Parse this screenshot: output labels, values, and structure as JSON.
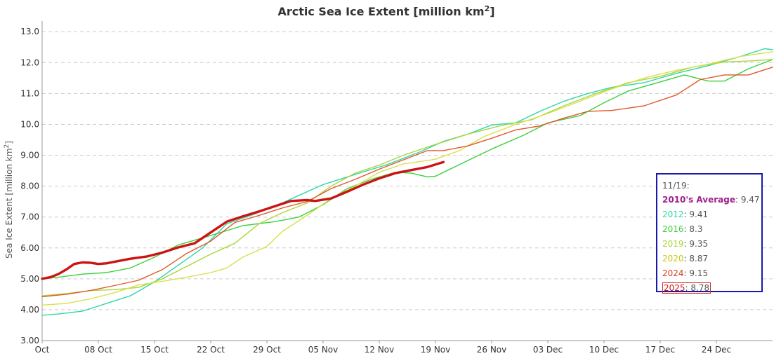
{
  "chart_data": {
    "type": "line",
    "title": "Arctic Sea Ice Extent [million km",
    "title_sup": "2",
    "title_close": "]",
    "ylabel": "Sea Ice Extent [million km",
    "ylabel_sup": "2",
    "ylabel_close": "]",
    "ylim": [
      3.0,
      13.3
    ],
    "xlim": [
      1,
      92
    ],
    "yticks": [
      "3.00",
      "4.00",
      "5.00",
      "6.00",
      "7.00",
      "8.00",
      "9.00",
      "10.0",
      "11.0",
      "12.0",
      "13.0"
    ],
    "ytick_values": [
      3,
      4,
      5,
      6,
      7,
      8,
      9,
      10,
      11,
      12,
      13
    ],
    "xticks": [
      "Oct",
      "08 Oct",
      "15 Oct",
      "22 Oct",
      "29 Oct",
      "05 Nov",
      "12 Nov",
      "19 Nov",
      "26 Nov",
      "03 Dec",
      "10 Dec",
      "17 Dec",
      "24 Dec"
    ],
    "xtick_days": [
      1,
      8,
      15,
      22,
      29,
      36,
      43,
      50,
      57,
      64,
      71,
      78,
      85
    ],
    "series": [
      {
        "name": "2010's Average",
        "color": "#a0218c",
        "width": 1.2,
        "values": [],
        "legend_value": "9.47"
      },
      {
        "name": "2012",
        "color": "#2ed6ad",
        "width": 1.4,
        "points": [
          [
            1,
            3.82
          ],
          [
            3,
            3.86
          ],
          [
            6,
            3.95
          ],
          [
            9,
            4.2
          ],
          [
            12,
            4.45
          ],
          [
            15,
            4.9
          ],
          [
            18,
            5.45
          ],
          [
            21,
            6.0
          ],
          [
            24,
            6.78
          ],
          [
            27,
            7.05
          ],
          [
            30,
            7.35
          ],
          [
            33,
            7.7
          ],
          [
            36,
            8.05
          ],
          [
            40,
            8.38
          ],
          [
            44,
            8.7
          ],
          [
            48,
            9.1
          ],
          [
            51,
            9.45
          ],
          [
            54,
            9.68
          ],
          [
            57,
            9.98
          ],
          [
            60,
            10.05
          ],
          [
            63,
            10.42
          ],
          [
            66,
            10.75
          ],
          [
            69,
            11.0
          ],
          [
            72,
            11.2
          ],
          [
            76,
            11.35
          ],
          [
            80,
            11.65
          ],
          [
            84,
            11.9
          ],
          [
            88,
            12.2
          ],
          [
            91,
            12.45
          ],
          [
            92,
            12.42
          ]
        ],
        "legend_value": "9.41"
      },
      {
        "name": "2016",
        "color": "#3ad13a",
        "width": 1.4,
        "points": [
          [
            1,
            5.0
          ],
          [
            3,
            5.05
          ],
          [
            6,
            5.15
          ],
          [
            9,
            5.2
          ],
          [
            12,
            5.35
          ],
          [
            15,
            5.7
          ],
          [
            18,
            6.1
          ],
          [
            22,
            6.4
          ],
          [
            26,
            6.72
          ],
          [
            30,
            6.85
          ],
          [
            33,
            7.0
          ],
          [
            36,
            7.4
          ],
          [
            39,
            7.92
          ],
          [
            42,
            8.22
          ],
          [
            45,
            8.45
          ],
          [
            47,
            8.42
          ],
          [
            49,
            8.3
          ],
          [
            50,
            8.32
          ],
          [
            53,
            8.7
          ],
          [
            57,
            9.2
          ],
          [
            61,
            9.65
          ],
          [
            64,
            10.05
          ],
          [
            68,
            10.28
          ],
          [
            71,
            10.7
          ],
          [
            74,
            11.08
          ],
          [
            77,
            11.3
          ],
          [
            81,
            11.6
          ],
          [
            84,
            11.4
          ],
          [
            86,
            11.4
          ],
          [
            89,
            11.8
          ],
          [
            92,
            12.1
          ]
        ],
        "legend_value": "8.3"
      },
      {
        "name": "2019",
        "color": "#a9d63a",
        "width": 1.4,
        "points": [
          [
            1,
            4.45
          ],
          [
            4,
            4.52
          ],
          [
            7,
            4.62
          ],
          [
            10,
            4.65
          ],
          [
            13,
            4.72
          ],
          [
            16,
            5.0
          ],
          [
            19,
            5.4
          ],
          [
            22,
            5.8
          ],
          [
            25,
            6.15
          ],
          [
            28,
            6.78
          ],
          [
            31,
            7.15
          ],
          [
            34,
            7.45
          ],
          [
            37,
            8.0
          ],
          [
            40,
            8.42
          ],
          [
            43,
            8.68
          ],
          [
            46,
            9.0
          ],
          [
            50,
            9.35
          ],
          [
            54,
            9.68
          ],
          [
            58,
            9.95
          ],
          [
            62,
            10.15
          ],
          [
            66,
            10.6
          ],
          [
            70,
            11.0
          ],
          [
            74,
            11.35
          ],
          [
            78,
            11.55
          ],
          [
            82,
            11.85
          ],
          [
            86,
            12.02
          ],
          [
            89,
            12.05
          ],
          [
            92,
            12.1
          ]
        ],
        "legend_value": "9.35"
      },
      {
        "name": "2020",
        "color": "#d9e04a",
        "width": 1.4,
        "points": [
          [
            1,
            4.15
          ],
          [
            4,
            4.2
          ],
          [
            7,
            4.35
          ],
          [
            10,
            4.55
          ],
          [
            13,
            4.8
          ],
          [
            16,
            4.92
          ],
          [
            19,
            5.05
          ],
          [
            22,
            5.2
          ],
          [
            24,
            5.35
          ],
          [
            26,
            5.7
          ],
          [
            29,
            6.05
          ],
          [
            31,
            6.55
          ],
          [
            34,
            7.05
          ],
          [
            37,
            7.6
          ],
          [
            40,
            8.0
          ],
          [
            43,
            8.45
          ],
          [
            46,
            8.72
          ],
          [
            50,
            8.87
          ],
          [
            53,
            9.15
          ],
          [
            56,
            9.6
          ],
          [
            60,
            10.0
          ],
          [
            64,
            10.35
          ],
          [
            68,
            10.75
          ],
          [
            72,
            11.15
          ],
          [
            76,
            11.5
          ],
          [
            80,
            11.75
          ],
          [
            84,
            11.95
          ],
          [
            88,
            12.2
          ],
          [
            92,
            12.35
          ]
        ],
        "legend_value": "8.87"
      },
      {
        "name": "2024",
        "color": "#e0582a",
        "width": 1.4,
        "points": [
          [
            1,
            4.42
          ],
          [
            4,
            4.5
          ],
          [
            7,
            4.62
          ],
          [
            10,
            4.78
          ],
          [
            13,
            4.95
          ],
          [
            16,
            5.3
          ],
          [
            19,
            5.82
          ],
          [
            22,
            6.22
          ],
          [
            25,
            6.82
          ],
          [
            28,
            7.05
          ],
          [
            31,
            7.3
          ],
          [
            34,
            7.5
          ],
          [
            37,
            7.92
          ],
          [
            40,
            8.22
          ],
          [
            43,
            8.55
          ],
          [
            46,
            8.85
          ],
          [
            49,
            9.15
          ],
          [
            51,
            9.15
          ],
          [
            54,
            9.3
          ],
          [
            57,
            9.55
          ],
          [
            60,
            9.82
          ],
          [
            63,
            9.95
          ],
          [
            66,
            10.2
          ],
          [
            69,
            10.42
          ],
          [
            72,
            10.45
          ],
          [
            76,
            10.6
          ],
          [
            80,
            10.95
          ],
          [
            83,
            11.45
          ],
          [
            86,
            11.6
          ],
          [
            89,
            11.6
          ],
          [
            92,
            11.85
          ]
        ],
        "legend_value": "9.15"
      },
      {
        "name": "2025",
        "color": "#cc1414",
        "width": 3.4,
        "points": [
          [
            1,
            5.0
          ],
          [
            2,
            5.05
          ],
          [
            3,
            5.15
          ],
          [
            4,
            5.3
          ],
          [
            5,
            5.48
          ],
          [
            6,
            5.53
          ],
          [
            7,
            5.52
          ],
          [
            8,
            5.48
          ],
          [
            9,
            5.5
          ],
          [
            10,
            5.55
          ],
          [
            12,
            5.65
          ],
          [
            14,
            5.72
          ],
          [
            16,
            5.85
          ],
          [
            18,
            6.02
          ],
          [
            20,
            6.15
          ],
          [
            22,
            6.5
          ],
          [
            24,
            6.85
          ],
          [
            26,
            7.02
          ],
          [
            28,
            7.18
          ],
          [
            30,
            7.35
          ],
          [
            32,
            7.52
          ],
          [
            34,
            7.55
          ],
          [
            35,
            7.52
          ],
          [
            37,
            7.6
          ],
          [
            39,
            7.82
          ],
          [
            41,
            8.05
          ],
          [
            43,
            8.25
          ],
          [
            45,
            8.42
          ],
          [
            47,
            8.52
          ],
          [
            49,
            8.62
          ],
          [
            50,
            8.7
          ],
          [
            51,
            8.78
          ]
        ],
        "legend_value": "8.78"
      }
    ]
  },
  "legend": {
    "date": "11/19:",
    "rows": [
      {
        "name": "2010's Average",
        "value": "9.47",
        "color": "#a0218c",
        "bold": true
      },
      {
        "name": "2012",
        "value": "9.41",
        "color": "#2ed6ad"
      },
      {
        "name": "2016",
        "value": "8.3",
        "color": "#3ad13a"
      },
      {
        "name": "2019",
        "value": "9.35",
        "color": "#a9d63a"
      },
      {
        "name": "2020",
        "value": "8.87",
        "color": "#c8c814"
      },
      {
        "name": "2024",
        "value": "9.15",
        "color": "#d4401a"
      },
      {
        "name": "2025",
        "value": "8.78",
        "color": "#cc1414",
        "boxed": true
      }
    ]
  }
}
